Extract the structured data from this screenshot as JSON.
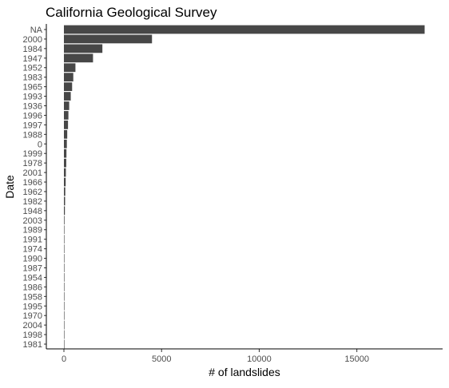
{
  "chart_data": {
    "type": "bar",
    "orientation": "horizontal",
    "title": "California Geological Survey",
    "xlabel": "# of landslides",
    "ylabel": "Date",
    "xlim": [
      0,
      19500
    ],
    "xticks": [
      0,
      5000,
      10000,
      15000
    ],
    "grid": false,
    "legend": "none",
    "bar_color": "#474747",
    "categories": [
      "NA",
      "2000",
      "1984",
      "1947",
      "1952",
      "1983",
      "1965",
      "1993",
      "1936",
      "1996",
      "1997",
      "1988",
      "0",
      "1999",
      "1978",
      "2001",
      "1966",
      "1962",
      "1982",
      "1948",
      "2003",
      "1989",
      "1991",
      "1974",
      "1990",
      "1987",
      "1954",
      "1986",
      "1958",
      "1995",
      "1970",
      "2004",
      "1998",
      "1981"
    ],
    "values": [
      18470,
      4510,
      1970,
      1490,
      590,
      480,
      420,
      350,
      270,
      230,
      210,
      170,
      150,
      130,
      120,
      100,
      90,
      70,
      60,
      50,
      30,
      25,
      22,
      20,
      18,
      16,
      14,
      12,
      10,
      9,
      8,
      6,
      5,
      3
    ]
  }
}
